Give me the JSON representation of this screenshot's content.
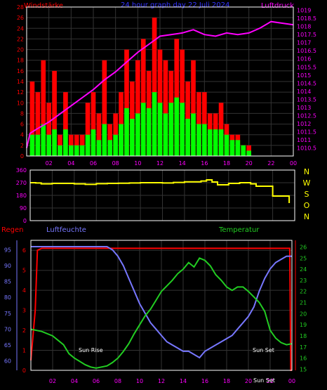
{
  "chart_data": [
    {
      "type": "bar",
      "title": "24 hour graph day  22 Juli 2024",
      "ylabel_left": "Windstärke",
      "ylabel_right": "Luftdruck",
      "x_ticks": [
        "02",
        "04",
        "06",
        "08",
        "10",
        "12",
        "14",
        "16",
        "18",
        "20",
        "22",
        "00"
      ],
      "xlim": [
        0,
        24
      ],
      "ylim_left": [
        0,
        28
      ],
      "left_ticks": [
        "0",
        "2",
        "4",
        "6",
        "8",
        "10",
        "12",
        "14",
        "16",
        "18",
        "20",
        "22",
        "24",
        "26",
        "28"
      ],
      "ylim_right": [
        1010,
        1019.2
      ],
      "right_ticks": [
        "1010.5",
        "1011",
        "1011.5",
        "1012",
        "1012.5",
        "1013",
        "1013.5",
        "1014",
        "1014.5",
        "1015",
        "1015.5",
        "1016",
        "1016.5",
        "1017",
        "1017.5",
        "1018",
        "1018.5",
        "1019"
      ],
      "grid": true,
      "colors": {
        "gust": "#ff0000",
        "wind": "#00ff00",
        "pressure": "#ff00ff",
        "title": "#3333ff",
        "ticks": "#ff00ff"
      },
      "series": [
        {
          "name": "Windstärke",
          "kind": "bar",
          "color": "#ff0000",
          "role": "gust",
          "x": [
            0.5,
            1.0,
            1.5,
            2.0,
            2.5,
            3.0,
            3.5,
            4.0,
            4.5,
            5.0,
            5.5,
            6.0,
            6.5,
            7.0,
            7.5,
            8.0,
            8.5,
            9.0,
            9.5,
            10.0,
            10.5,
            11.0,
            11.5,
            12.0,
            12.5,
            13.0,
            13.5,
            14.0,
            14.5,
            15.0,
            15.5,
            16.0,
            16.5,
            17.0,
            17.5,
            18.0,
            18.5,
            19.0,
            19.5,
            20.0
          ],
          "values": [
            14,
            12,
            18,
            10,
            16,
            4,
            12,
            4,
            4,
            4,
            10,
            12,
            8,
            18,
            6,
            8,
            12,
            20,
            14,
            18,
            22,
            16,
            26,
            20,
            18,
            16,
            22,
            20,
            14,
            18,
            12,
            12,
            8,
            8,
            10,
            6,
            4,
            4,
            2,
            2
          ]
        },
        {
          "name": "",
          "kind": "bar",
          "color": "#00ff00",
          "role": "wind",
          "x": [
            0.5,
            1.0,
            1.5,
            2.0,
            2.5,
            3.0,
            3.5,
            4.0,
            4.5,
            5.0,
            5.5,
            6.0,
            6.5,
            7.0,
            7.5,
            8.0,
            8.5,
            9.0,
            9.5,
            10.0,
            10.5,
            11.0,
            11.5,
            12.0,
            12.5,
            13.0,
            13.5,
            14.0,
            14.5,
            15.0,
            15.5,
            16.0,
            16.5,
            17.0,
            17.5,
            18.0,
            18.5,
            19.0,
            19.5,
            20.0
          ],
          "values": [
            4,
            4,
            6,
            4,
            5,
            2,
            5,
            2,
            2,
            2,
            4,
            5,
            3,
            6,
            3,
            4,
            6,
            9,
            7,
            8,
            10,
            9,
            12,
            10,
            8,
            10,
            11,
            10,
            7,
            8,
            6,
            6,
            5,
            5,
            5,
            4,
            3,
            3,
            2,
            1
          ]
        },
        {
          "name": "Luftdruck",
          "kind": "line",
          "color": "#ff00ff",
          "role": "pressure",
          "x": [
            0,
            0.3,
            1,
            2,
            3,
            4,
            5,
            6,
            7,
            8,
            9,
            10,
            11,
            12,
            13,
            14,
            15,
            16,
            17,
            18,
            19,
            20,
            21,
            22,
            23,
            24
          ],
          "values": [
            1010.5,
            1011.4,
            1011.7,
            1012.1,
            1012.6,
            1013.1,
            1013.6,
            1014.1,
            1014.7,
            1015.2,
            1015.8,
            1016.4,
            1016.9,
            1017.4,
            1017.5,
            1017.6,
            1017.8,
            1017.5,
            1017.4,
            1017.6,
            1017.5,
            1017.6,
            1017.9,
            1018.3,
            1018.2,
            1018.1
          ]
        }
      ]
    },
    {
      "type": "line",
      "title": "",
      "ylabel": "",
      "x_ticks": [
        "02",
        "04",
        "06",
        "08",
        "10",
        "12",
        "14",
        "16",
        "18",
        "20",
        "22",
        "00"
      ],
      "xlim": [
        0,
        24
      ],
      "ylim": [
        0,
        360
      ],
      "y_ticks": [
        "0",
        "90",
        "180",
        "270",
        "360"
      ],
      "right_labels": [
        "N",
        "W",
        "S",
        "O",
        "N"
      ],
      "grid": true,
      "colors": {
        "line": "#ffff00",
        "labels": "#ffff00",
        "ticks": "#ff00ff"
      },
      "series": [
        {
          "name": "",
          "color": "#ffff00",
          "x": [
            0,
            0.5,
            1,
            2,
            3,
            4,
            5,
            6,
            7,
            8,
            9,
            10,
            11,
            12,
            13,
            14,
            15,
            15.5,
            16,
            16.5,
            17,
            18,
            19,
            20,
            20.5,
            21,
            22,
            23,
            23.5
          ],
          "values": [
            270,
            268,
            262,
            265,
            265,
            262,
            258,
            263,
            265,
            266,
            268,
            270,
            270,
            268,
            272,
            276,
            276,
            282,
            290,
            275,
            255,
            265,
            270,
            262,
            245,
            245,
            175,
            175,
            125
          ]
        }
      ]
    },
    {
      "type": "line",
      "title": "",
      "ylabel_left_1": "Regen",
      "ylabel_left_2": "Luftfeuchte",
      "ylabel_right": "Temperatur",
      "x_ticks": [
        "02",
        "04",
        "06",
        "08",
        "10",
        "12",
        "14",
        "16",
        "18",
        "20",
        "22",
        "00"
      ],
      "xlim": [
        0,
        24
      ],
      "ylim_rain": [
        0,
        6.5
      ],
      "rain_ticks": [
        "0",
        "1",
        "2",
        "3",
        "4",
        "5",
        "6"
      ],
      "ylim_humidity": [
        57,
        98
      ],
      "humidity_ticks": [
        "60",
        "65",
        "70",
        "75",
        "80",
        "85",
        "90",
        "95"
      ],
      "ylim_temp": [
        14.9,
        26.6
      ],
      "temp_ticks": [
        "15",
        "16",
        "17",
        "18",
        "19",
        "20",
        "21",
        "22",
        "23",
        "24",
        "25",
        "26"
      ],
      "annotations": [
        "Sun Rise",
        "Sun Set",
        "Sun Set"
      ],
      "grid": true,
      "colors": {
        "rain": "#ff0000",
        "humidity": "#7777ff",
        "temp": "#22cc22",
        "annotation": "#ffffff"
      },
      "series": [
        {
          "name": "Regen",
          "color": "#ff0000",
          "role": "rain",
          "x": [
            0,
            0.4,
            0.6,
            1,
            4,
            8,
            12,
            16,
            20,
            22,
            23.8,
            23.9,
            24
          ],
          "values": [
            0.5,
            3,
            6,
            6.1,
            6.1,
            6.1,
            6.1,
            6.1,
            6.1,
            6.1,
            6.1,
            0,
            0
          ]
        },
        {
          "name": "Luftfeuchte",
          "color": "#7777ff",
          "role": "humidity",
          "x": [
            0,
            1,
            2,
            3,
            4,
            5,
            6,
            7,
            7.5,
            8,
            8.5,
            9,
            9.5,
            10,
            10.5,
            11,
            11.5,
            12,
            12.5,
            13,
            13.5,
            14,
            14.5,
            15,
            15.5,
            16,
            16.5,
            17,
            17.5,
            18,
            18.5,
            19,
            19.5,
            20,
            20.5,
            21,
            21.5,
            22,
            22.5,
            23,
            23.5,
            24
          ],
          "values": [
            96,
            96,
            96,
            96,
            96,
            96,
            96,
            96,
            95,
            93,
            90,
            86,
            82,
            78,
            75,
            72,
            70,
            68,
            66,
            65,
            64,
            63,
            63,
            62,
            61,
            63,
            64,
            65,
            66,
            67,
            68,
            70,
            72,
            74,
            77,
            82,
            86,
            89,
            91,
            92,
            93,
            93
          ]
        },
        {
          "name": "Temperatur",
          "color": "#22cc22",
          "role": "temp",
          "x": [
            0,
            1,
            2,
            3,
            3.5,
            4,
            5,
            5.5,
            6,
            7,
            7.5,
            8,
            8.5,
            9,
            9.5,
            10,
            10.5,
            11,
            11.5,
            12,
            12.5,
            13,
            13.5,
            14,
            14.5,
            15,
            15.5,
            16,
            16.5,
            17,
            17.5,
            18,
            18.5,
            19,
            19.5,
            20,
            20.5,
            21,
            21.5,
            22,
            22.5,
            23,
            23.5,
            24
          ],
          "values": [
            18.6,
            18.4,
            18.0,
            17.2,
            16.4,
            16.0,
            15.4,
            15.2,
            15.1,
            15.3,
            15.6,
            16.0,
            16.6,
            17.3,
            18.2,
            19.0,
            19.8,
            20.4,
            21.2,
            22.0,
            22.5,
            23.0,
            23.6,
            24.0,
            24.6,
            24.2,
            25.0,
            24.8,
            24.3,
            23.5,
            23.0,
            22.4,
            22.1,
            22.4,
            22.4,
            22.0,
            21.5,
            21.0,
            20.2,
            18.5,
            17.8,
            17.4,
            17.2,
            17.3
          ]
        }
      ]
    }
  ]
}
